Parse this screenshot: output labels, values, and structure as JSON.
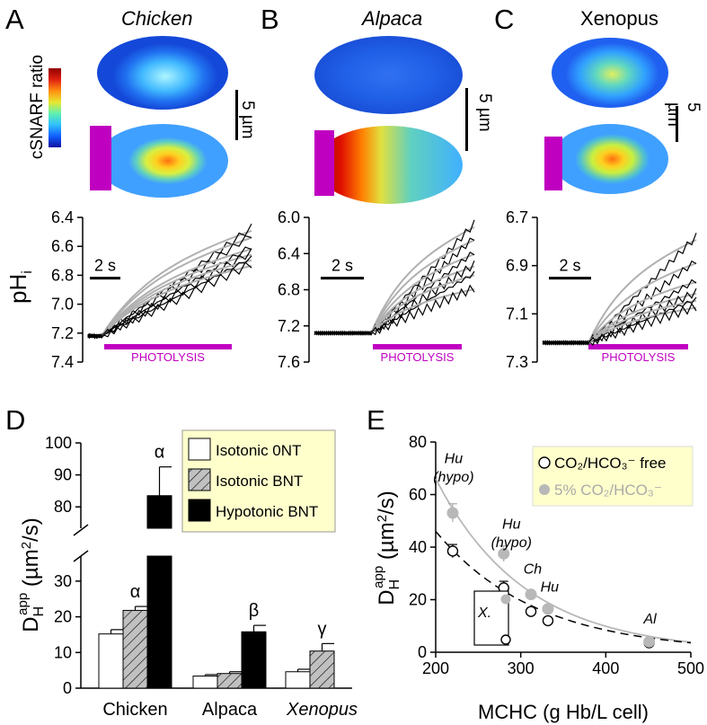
{
  "panels": {
    "A": {
      "letter": "A",
      "species": "Chicken",
      "italic": true
    },
    "B": {
      "letter": "B",
      "species": "Alpaca",
      "italic": true
    },
    "C": {
      "letter": "C",
      "species": "Xenopus",
      "italic": false
    }
  },
  "colorbar_label": "cSNARF ratio",
  "scalebar_label": "5 µm",
  "time_scale_label": "2 s",
  "photolysis_label": "PHOTOLYSIS",
  "ph_axis_label": "pH",
  "ph_axis_sub": "i",
  "colors": {
    "photolysis": "#c000c0",
    "trace_black": "#000000",
    "trace_fit": "#b0b0b0",
    "bar_gray": "#c0c0c0",
    "legend_bg": "#ffffcc",
    "fit_gray": "#b8b8b8"
  },
  "chart_data": [
    {
      "id": "A-traces",
      "type": "line",
      "ylabel": "pHi",
      "yticks": [
        "6.4",
        "6.6",
        "6.8",
        "7.0",
        "7.2",
        "7.4"
      ],
      "ylim": [
        7.4,
        6.4
      ],
      "baseline": 7.22,
      "ends": [
        6.47,
        6.52,
        6.6,
        6.64,
        6.68,
        6.72
      ]
    },
    {
      "id": "B-traces",
      "type": "line",
      "ylabel": "pHi",
      "yticks": [
        "6.0",
        "6.4",
        "6.8",
        "7.2",
        "7.6"
      ],
      "ylim": [
        7.6,
        6.0
      ],
      "baseline": 7.28,
      "ends": [
        6.07,
        6.22,
        6.38,
        6.52,
        6.62,
        6.78
      ]
    },
    {
      "id": "C-traces",
      "type": "line",
      "ylabel": "pHi",
      "yticks": [
        "6.7",
        "6.9",
        "7.1",
        "7.3"
      ],
      "ylim": [
        7.3,
        6.7
      ],
      "baseline": 7.22,
      "ends": [
        6.78,
        6.88,
        6.96,
        7.01,
        7.04,
        7.07
      ]
    },
    {
      "id": "D",
      "type": "bar",
      "ylabel": "D_H^app (µm²/s)",
      "categories": [
        "Chicken",
        "Alpaca",
        "Xenopus"
      ],
      "category_italic": [
        false,
        false,
        true
      ],
      "lower_ticks": [
        "0",
        "10",
        "20",
        "30"
      ],
      "upper_ticks": [
        "80",
        "90",
        "100"
      ],
      "series": [
        {
          "name": "Isotonic 0NT",
          "values": [
            15.2,
            3.4,
            4.6
          ],
          "errors": [
            1.2,
            0.4,
            0.7
          ]
        },
        {
          "name": "Isotonic BNT",
          "values": [
            21.8,
            4.1,
            10.4
          ],
          "errors": [
            1.1,
            0.5,
            2.1
          ]
        },
        {
          "name": "Hypotonic BNT",
          "values": [
            83.5,
            15.8,
            null
          ],
          "errors": [
            9.0,
            1.8,
            null
          ]
        }
      ],
      "annotations": [
        {
          "text": "α",
          "category": 0,
          "series": 1
        },
        {
          "text": "α",
          "category": 0,
          "series": 2
        },
        {
          "text": "β",
          "category": 1,
          "series": 2
        },
        {
          "text": "γ",
          "category": 2,
          "series": 1
        }
      ]
    },
    {
      "id": "E",
      "type": "scatter",
      "xlabel": "MCHC (g Hb/L cell)",
      "ylabel": "D_H^app (µm²/s)",
      "xlim": [
        200,
        500
      ],
      "ylim": [
        0,
        80
      ],
      "xticks": [
        "200",
        "300",
        "400",
        "500"
      ],
      "yticks": [
        "0",
        "20",
        "40",
        "60",
        "80"
      ],
      "series": [
        {
          "name": "CO₂/HCO₃⁻ free",
          "style": "open",
          "x": [
            220,
            280,
            312,
            332,
            451
          ],
          "y": [
            38.5,
            24.5,
            15.5,
            12.0,
            3.6
          ],
          "err": [
            2.5,
            2.5,
            1.2,
            1.0,
            0.5
          ]
        },
        {
          "name": "5% CO₂/HCO₃⁻",
          "style": "gray",
          "x": [
            220,
            280,
            312,
            332,
            451
          ],
          "y": [
            53.0,
            37.5,
            22.0,
            16.5,
            4.0
          ],
          "err": [
            3.5,
            3.0,
            1.0,
            1.0,
            0.5
          ]
        }
      ],
      "point_labels": [
        {
          "text": "Hu",
          "x": 221,
          "y": 72
        },
        {
          "text": "(hypo)",
          "x": 221,
          "y": 65
        },
        {
          "text": "Hu",
          "x": 289,
          "y": 47
        },
        {
          "text": "(hypo)",
          "x": 289,
          "y": 40
        },
        {
          "text": "Ch",
          "x": 314,
          "y": 30
        },
        {
          "text": "Hu",
          "x": 334,
          "y": 23
        },
        {
          "text": "Al",
          "x": 452,
          "y": 11
        }
      ],
      "inset_label": "X."
    }
  ]
}
